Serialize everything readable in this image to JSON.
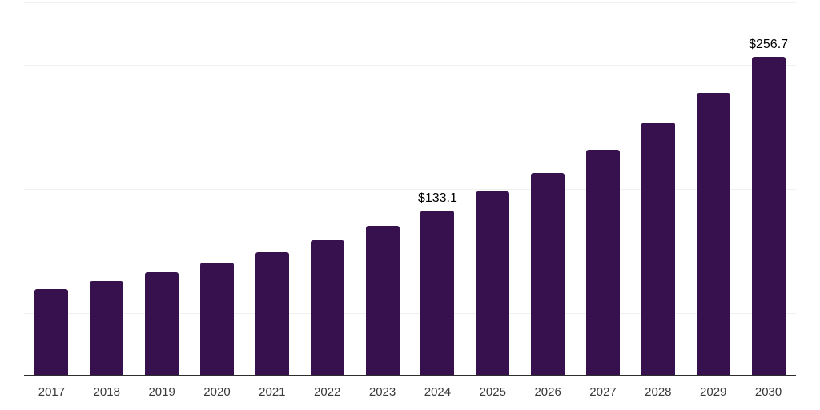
{
  "chart_data": {
    "type": "bar",
    "title": "",
    "xlabel": "",
    "ylabel": "",
    "categories": [
      "2017",
      "2018",
      "2019",
      "2020",
      "2021",
      "2022",
      "2023",
      "2024",
      "2025",
      "2026",
      "2027",
      "2028",
      "2029",
      "2030"
    ],
    "values": [
      69.7,
      76.0,
      83.1,
      90.7,
      99.6,
      109.2,
      120.7,
      133.1,
      148.4,
      163.5,
      182.0,
      203.8,
      228.0,
      256.7
    ],
    "data_labels": [
      "",
      "",
      "",
      "",
      "",
      "",
      "",
      "$133.1",
      "",
      "",
      "",
      "",
      "",
      "$256.7"
    ],
    "currency_unit": "USD",
    "ylim": [
      0,
      300
    ],
    "grid_step": 50,
    "grid": "horizontal",
    "legend": "none",
    "y_axis_tick_labels": "none",
    "colors": {
      "background": "#ffffff",
      "bar": "#36114e",
      "gridline": "#f0f0f0",
      "axis_line": "#2e2e2e",
      "tick_label": "#3a3a3a",
      "data_label": "#000000"
    }
  }
}
